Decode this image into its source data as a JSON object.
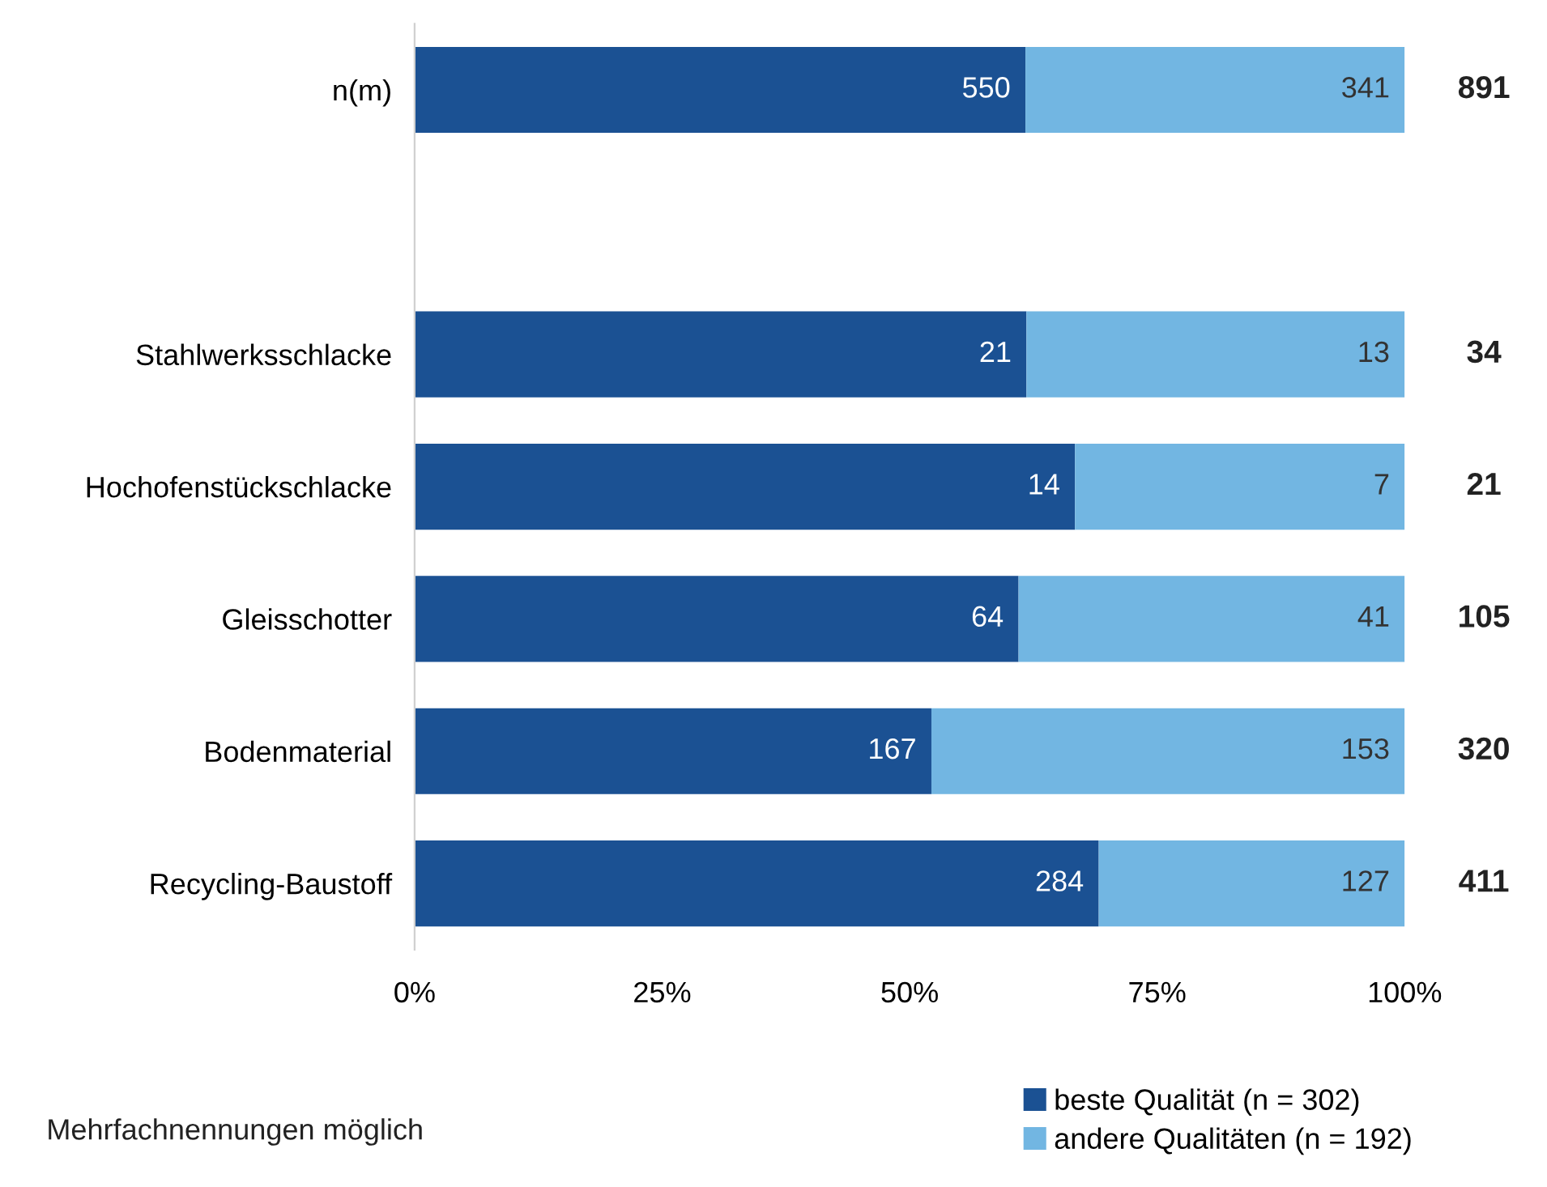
{
  "chart_data": {
    "type": "bar",
    "orientation": "horizontal",
    "stacked": true,
    "categories": [
      "n(m)",
      null,
      "Stahlwerksschlacke",
      "Hochofenstückschlacke",
      "Gleisschotter",
      "Bodenmaterial",
      "Recycling-Baustoff"
    ],
    "series": [
      {
        "name": "beste Qualität (n = 302)",
        "color": "#1b5193",
        "values": [
          61.7,
          null,
          61.8,
          66.7,
          61.0,
          52.2,
          69.1
        ]
      },
      {
        "name": "andere Qualitäten (n = 192)",
        "color": "#72b6e2",
        "values": [
          38.3,
          null,
          38.2,
          33.3,
          39.0,
          47.8,
          30.9
        ]
      }
    ],
    "xlim": [
      0,
      100
    ],
    "xticks": [
      {
        "value": 0,
        "label": "0%"
      },
      {
        "value": 25,
        "label": "25%"
      },
      {
        "value": 50,
        "label": "50%"
      },
      {
        "value": 75,
        "label": "75%"
      },
      {
        "value": 100,
        "label": "100%"
      }
    ],
    "grid": false,
    "legend": "bottom right",
    "annotations": [
      {
        "text": "550",
        "x": 61.7,
        "y": "n(m)"
      },
      {
        "text": "341",
        "x": 100,
        "y": "n(m)"
      },
      {
        "text": "891",
        "x": 100,
        "y": "n(m)"
      },
      {
        "text": "21",
        "x": 61.8,
        "y": "Stahlwerksschlacke"
      },
      {
        "text": "13",
        "x": 100,
        "y": "Stahlwerksschlacke"
      },
      {
        "text": "34",
        "x": 100,
        "y": "Stahlwerksschlacke"
      },
      {
        "text": "14",
        "x": 66.7,
        "y": "Hochofenstückschlacke"
      },
      {
        "text": "7",
        "x": 100,
        "y": "Hochofenstückschlacke"
      },
      {
        "text": "21",
        "x": 100,
        "y": "Hochofenstückschlacke"
      },
      {
        "text": "64",
        "x": 61.0,
        "y": "Gleisschotter"
      },
      {
        "text": "41",
        "x": 100,
        "y": "Gleisschotter"
      },
      {
        "text": "105",
        "x": 100,
        "y": "Gleisschotter"
      },
      {
        "text": "167",
        "x": 52.2,
        "y": "Bodenmaterial"
      },
      {
        "text": "153",
        "x": 100,
        "y": "Bodenmaterial"
      },
      {
        "text": "320",
        "x": 100,
        "y": "Bodenmaterial"
      },
      {
        "text": "284",
        "x": 69.1,
        "y": "Recycling-Baustoff"
      },
      {
        "text": "127",
        "x": 100,
        "y": "Recycling-Baustoff"
      },
      {
        "text": "411",
        "x": 100,
        "y": "Recycling-Baustoff"
      },
      "Mehrfachnennungen möglich"
    ]
  }
}
